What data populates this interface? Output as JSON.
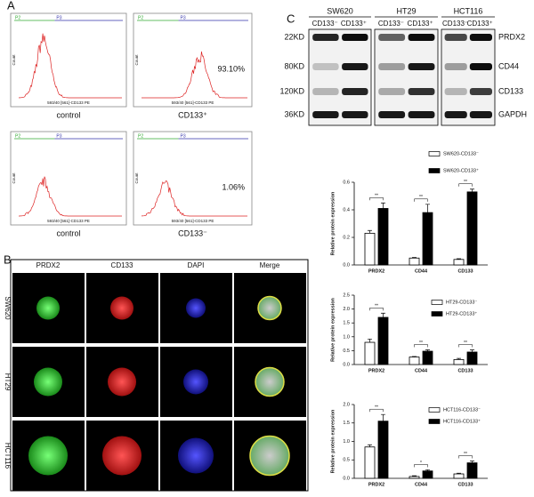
{
  "panel_labels": [
    "A",
    "B",
    "C"
  ],
  "flow": {
    "gates": [
      "P2",
      "P3"
    ],
    "x_label": "593/40 [561]-CD133 PE",
    "y_label": "Count",
    "histograms": [
      {
        "caption": "control"
      },
      {
        "caption": "CD133⁺",
        "percent": "93.10%"
      },
      {
        "caption": "control"
      },
      {
        "caption": "CD133⁻",
        "percent": "1.06%"
      }
    ]
  },
  "immunofluorescence": {
    "columns": [
      "PRDX2",
      "CD133",
      "DAPI",
      "Merge"
    ],
    "rows": [
      "SW620",
      "HT29",
      "HCT116"
    ]
  },
  "blot": {
    "cell_lines": [
      "SW620",
      "HT29",
      "HCT116"
    ],
    "groups": [
      "CD133⁻",
      "CD133⁺"
    ],
    "sizes": [
      "22KD",
      "80KD",
      "120KD",
      "36KD"
    ],
    "proteins": [
      "PRDX2",
      "CD44",
      "CD133",
      "GAPDH"
    ]
  },
  "chart_data": [
    {
      "type": "bar",
      "y_label": "Relative protein expression",
      "categories": [
        "PRDX2",
        "CD44",
        "CD133"
      ],
      "series": [
        {
          "name": "SW620-CD133⁻",
          "color": "#ffffff",
          "values": [
            0.23,
            0.05,
            0.04
          ],
          "errors": [
            0.02,
            0.004,
            0.005
          ]
        },
        {
          "name": "SW620-CD133⁺",
          "color": "#000000",
          "values": [
            0.41,
            0.38,
            0.53
          ],
          "errors": [
            0.04,
            0.06,
            0.02
          ]
        }
      ],
      "annotations": [
        "**",
        "**",
        "**"
      ],
      "ylim": [
        0,
        0.6
      ],
      "yticks": [
        {
          "value": 0,
          "label": "0.0"
        },
        0.2,
        0.4,
        0.6
      ]
    },
    {
      "type": "bar",
      "y_label": "Relative protein expression",
      "categories": [
        "PRDX2",
        "CD44",
        "CD133"
      ],
      "series": [
        {
          "name": "HT29-CD133⁻",
          "color": "#ffffff",
          "values": [
            0.8,
            0.27,
            0.18
          ],
          "errors": [
            0.12,
            0.02,
            0.04
          ]
        },
        {
          "name": "HT29-CD133⁺",
          "color": "#000000",
          "values": [
            1.7,
            0.48,
            0.45
          ],
          "errors": [
            0.15,
            0.05,
            0.08
          ]
        }
      ],
      "annotations": [
        "**",
        "**",
        "**"
      ],
      "ylim": [
        0,
        2.5
      ],
      "yticks": [
        {
          "value": 0,
          "label": "0.0"
        },
        0.5,
        {
          "value": 1,
          "label": "1.0"
        },
        1.5,
        {
          "value": 2,
          "label": "2.0"
        },
        2.5
      ]
    },
    {
      "type": "bar",
      "y_label": "Relative protein expression",
      "categories": [
        "PRDX2",
        "CD44",
        "CD133"
      ],
      "series": [
        {
          "name": "HCT116-CD133⁻",
          "color": "#ffffff",
          "values": [
            0.85,
            0.05,
            0.12
          ],
          "errors": [
            0.06,
            0.02,
            0.02
          ]
        },
        {
          "name": "HCT116-CD133⁺",
          "color": "#000000",
          "values": [
            1.55,
            0.2,
            0.42
          ],
          "errors": [
            0.18,
            0.03,
            0.05
          ]
        }
      ],
      "annotations": [
        "**",
        "*",
        "**"
      ],
      "ylim": [
        0,
        2
      ],
      "yticks": [
        {
          "value": 0,
          "label": "0.0"
        },
        0.5,
        {
          "value": 1,
          "label": "1.0"
        },
        1.5,
        {
          "value": 2,
          "label": "2.0"
        }
      ]
    }
  ]
}
